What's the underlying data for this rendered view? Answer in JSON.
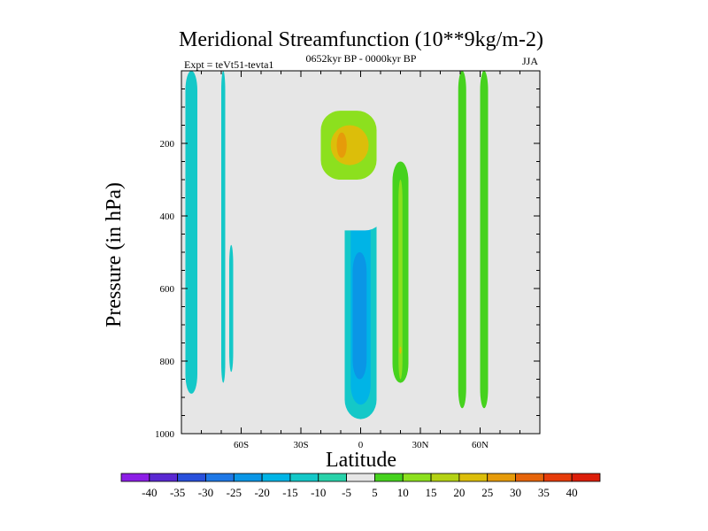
{
  "chart_data": {
    "type": "heatmap",
    "title": "Meridional Streamfunction (10**9kg/m-2)",
    "subtitle": "0652kyr BP - 0000kyr BP",
    "left_label": "Expt = teVt51-tevta1",
    "right_label": "JJA",
    "xlabel": "Latitude",
    "ylabel": "Pressure (in hPa)",
    "xlim": [
      -90,
      90
    ],
    "ylim": [
      1000,
      0
    ],
    "x_ticks": [
      {
        "value": -60,
        "label": "60S"
      },
      {
        "value": -30,
        "label": "30S"
      },
      {
        "value": 0,
        "label": "0"
      },
      {
        "value": 30,
        "label": "30N"
      },
      {
        "value": 60,
        "label": "60N"
      }
    ],
    "y_ticks": [
      {
        "value": 200,
        "label": "200"
      },
      {
        "value": 400,
        "label": "400"
      },
      {
        "value": 600,
        "label": "600"
      },
      {
        "value": 800,
        "label": "800"
      },
      {
        "value": 1000,
        "label": "1000"
      }
    ],
    "contour_levels": [
      -40,
      -35,
      -30,
      -25,
      -20,
      -15,
      -10,
      -5,
      5,
      10,
      15,
      20,
      25,
      30,
      35,
      40
    ],
    "colorbar_colors": [
      "#8c1ee6",
      "#5a28d2",
      "#2850dc",
      "#1e78e6",
      "#0a96e6",
      "#00b4e6",
      "#14c8c8",
      "#28d2aa",
      "#e6e6e6",
      "#46d21e",
      "#8ce01e",
      "#b4d214",
      "#dcbe0a",
      "#e69b0a",
      "#e6640a",
      "#e63c0a",
      "#dc1e0a"
    ],
    "background_color": "#e6e6e6",
    "regions": [
      {
        "name": "south-polar-band",
        "level": -10,
        "lat": [
          -88,
          -82
        ],
        "p": [
          0,
          890
        ]
      },
      {
        "name": "south-polar-thin-band",
        "level": -10,
        "lat": [
          -70,
          -68
        ],
        "p": [
          0,
          860
        ]
      },
      {
        "name": "south-polar-short-band",
        "level": -10,
        "lat": [
          -66,
          -64
        ],
        "p": [
          480,
          830
        ]
      },
      {
        "name": "equatorial-negative-cell",
        "level": -10,
        "lat": [
          -8,
          8
        ],
        "p": [
          300,
          960
        ]
      },
      {
        "name": "equatorial-negative-core",
        "level": -15,
        "lat": [
          -5,
          5
        ],
        "p": [
          340,
          920
        ]
      },
      {
        "name": "equatorial-negative-inner",
        "level": -20,
        "lat": [
          -4,
          3
        ],
        "p": [
          500,
          850
        ]
      },
      {
        "name": "upper-positive-cell",
        "level": 5,
        "lat": [
          -30,
          12
        ],
        "p": [
          0,
          440
        ]
      },
      {
        "name": "upper-positive-core",
        "level": 15,
        "lat": [
          -20,
          8
        ],
        "p": [
          110,
          300
        ]
      },
      {
        "name": "upper-positive-max",
        "level": 25,
        "lat": [
          -15,
          4
        ],
        "p": [
          150,
          260
        ]
      },
      {
        "name": "upper-positive-peak",
        "level": 30,
        "lat": [
          -12,
          -7
        ],
        "p": [
          170,
          240
        ]
      },
      {
        "name": "north-positive-cell",
        "level": 5,
        "lat": [
          10,
          28
        ],
        "p": [
          100,
          960
        ]
      },
      {
        "name": "north-positive-core",
        "level": 10,
        "lat": [
          16,
          24
        ],
        "p": [
          250,
          860
        ]
      },
      {
        "name": "north-positive-inner",
        "level": 15,
        "lat": [
          19,
          21
        ],
        "p": [
          300,
          850
        ]
      },
      {
        "name": "north-positive-spot",
        "level": 25,
        "lat": [
          19.5,
          20.5
        ],
        "p": [
          760,
          780
        ]
      },
      {
        "name": "north-band-a",
        "level": 5,
        "lat": [
          36,
          38
        ],
        "p": [
          0,
          240
        ]
      },
      {
        "name": "north-band-b",
        "level": 5,
        "lat": [
          48,
          54
        ],
        "p": [
          0,
          950
        ]
      },
      {
        "name": "north-band-b-core",
        "level": 10,
        "lat": [
          49,
          53
        ],
        "p": [
          0,
          930
        ]
      },
      {
        "name": "north-band-c",
        "level": 5,
        "lat": [
          58,
          66
        ],
        "p": [
          0,
          960
        ]
      },
      {
        "name": "north-band-c-core",
        "level": 10,
        "lat": [
          60,
          64
        ],
        "p": [
          0,
          930
        ]
      }
    ]
  }
}
